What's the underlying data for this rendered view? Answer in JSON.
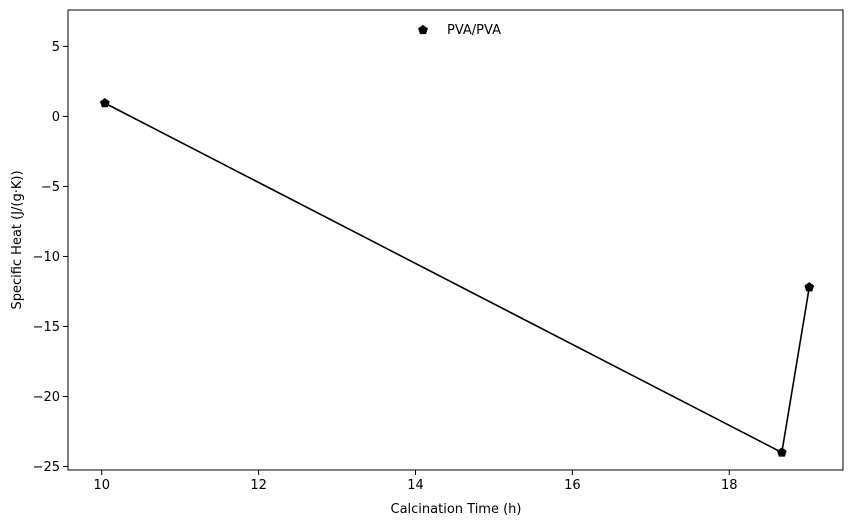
{
  "chart_data": {
    "type": "line",
    "title": "",
    "xlabel": "Calcination Time (h)",
    "ylabel": "Specific Heat (J/(g·K))",
    "xlim": [
      9.57,
      19.45
    ],
    "ylim": [
      -25.25,
      7.6
    ],
    "xticks": [
      10,
      12,
      14,
      16,
      18
    ],
    "yticks": [
      -25,
      -20,
      -15,
      -10,
      -5,
      0,
      5
    ],
    "xtick_labels": [
      "10",
      "12",
      "14",
      "16",
      "18"
    ],
    "ytick_labels": [
      "−25",
      "−20",
      "−15",
      "−10",
      "−5",
      "0",
      "5"
    ],
    "grid": false,
    "legend_position": "top-center",
    "series": [
      {
        "name": "PVA/PVA",
        "color": "#000000",
        "marker": "pentagon",
        "x": [
          10.04,
          18.67,
          19.02
        ],
        "y": [
          0.95,
          -24.0,
          -12.2
        ]
      }
    ]
  }
}
